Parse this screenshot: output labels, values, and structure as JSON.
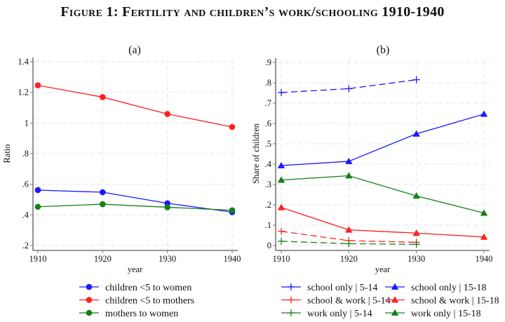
{
  "figure": {
    "title": "Figure 1: Fertility and children’s work/schooling 1910-1940"
  },
  "colors": {
    "blue": "#1a1aff",
    "red": "#ff2020",
    "green": "#148014",
    "axis": "#777777",
    "grid": "#e6e6e6"
  },
  "chart_data": [
    {
      "id": "a",
      "type": "line",
      "title": "(a)",
      "xlabel": "year",
      "ylabel": "Ratio",
      "x": [
        1910,
        1920,
        1930,
        1940
      ],
      "xlim": [
        1910,
        1940
      ],
      "ylim": [
        0.2,
        1.4
      ],
      "xticks": [
        1910,
        1920,
        1930,
        1940
      ],
      "xtick_labels": [
        "1910",
        "1920",
        "1930",
        "1940"
      ],
      "yticks": [
        0.2,
        0.4,
        0.6,
        0.8,
        1.0,
        1.2,
        1.4
      ],
      "ytick_labels": [
        ".2",
        ".4",
        ".6",
        ".8",
        "1",
        "1.2",
        "1.4"
      ],
      "grid": true,
      "legend_position": "bottom",
      "series": [
        {
          "name": "children <5 to women",
          "color": "blue",
          "marker": "circle",
          "dash": false,
          "values": [
            0.562,
            0.548,
            0.476,
            0.418
          ]
        },
        {
          "name": "children <5 to mothers",
          "color": "red",
          "marker": "circle",
          "dash": false,
          "values": [
            1.246,
            1.169,
            1.059,
            0.974
          ]
        },
        {
          "name": "mothers to women",
          "color": "green",
          "marker": "circle",
          "dash": false,
          "values": [
            0.453,
            0.47,
            0.45,
            0.43
          ]
        }
      ]
    },
    {
      "id": "b",
      "type": "line",
      "title": "(b)",
      "xlabel": "year",
      "ylabel": "Share of children",
      "x": [
        1910,
        1920,
        1930,
        1940
      ],
      "xlim": [
        1910,
        1940
      ],
      "ylim": [
        0,
        0.9
      ],
      "xticks": [
        1910,
        1920,
        1930,
        1940
      ],
      "xtick_labels": [
        "1910",
        "1920",
        "1930",
        "1940"
      ],
      "yticks": [
        0,
        0.1,
        0.2,
        0.3,
        0.4,
        0.5,
        0.6,
        0.7,
        0.8,
        0.9
      ],
      "ytick_labels": [
        "0",
        ".1",
        ".2",
        ".3",
        ".4",
        ".5",
        ".6",
        ".7",
        ".8",
        ".9"
      ],
      "grid": true,
      "legend_position": "bottom",
      "series": [
        {
          "name": "school only | 5-14",
          "color": "blue",
          "marker": "plus",
          "dash": true,
          "values": [
            0.752,
            0.771,
            0.815,
            null
          ]
        },
        {
          "name": "school & work | 5-14",
          "color": "red",
          "marker": "plus",
          "dash": true,
          "values": [
            0.07,
            0.024,
            0.016,
            null
          ]
        },
        {
          "name": "work only | 5-14",
          "color": "green",
          "marker": "plus",
          "dash": true,
          "values": [
            0.021,
            0.009,
            0.006,
            null
          ]
        },
        {
          "name": "school only | 15-18",
          "color": "blue",
          "marker": "triangle",
          "dash": false,
          "values": [
            0.393,
            0.414,
            0.549,
            0.646
          ]
        },
        {
          "name": "school & work | 15-18",
          "color": "red",
          "marker": "triangle",
          "dash": false,
          "values": [
            0.187,
            0.077,
            0.061,
            0.042
          ]
        },
        {
          "name": "work only | 15-18",
          "color": "green",
          "marker": "triangle",
          "dash": false,
          "values": [
            0.322,
            0.343,
            0.244,
            0.16
          ]
        }
      ]
    }
  ]
}
